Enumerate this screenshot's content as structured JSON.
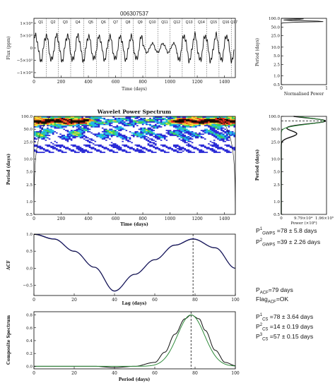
{
  "star_id": "006307537",
  "flux_panel": {
    "ylabel": "Flux (ppm)",
    "xlabel": "Time (days)",
    "xlim": [
      0,
      1480
    ],
    "xticks": [
      0,
      200,
      400,
      600,
      800,
      1000,
      1200,
      1400
    ],
    "yticks": [
      "1×10⁴",
      "5×10³",
      "0",
      "−5×10³",
      "−1×10⁴"
    ],
    "quarters": [
      "Q1",
      "Q2",
      "Q3",
      "Q4",
      "Q5",
      "Q6",
      "Q7",
      "Q8",
      "Q9",
      "Q10",
      "Q11",
      "Q12",
      "Q13",
      "Q14",
      "Q15",
      "Q16",
      "Q17"
    ]
  },
  "norm_power_panel": {
    "ylabel": "Period (days)",
    "xlabel": "Normalised Power",
    "xticks": [
      "0",
      "1"
    ],
    "yticks": [
      "100.0",
      "50.0",
      "25.0",
      "10.0",
      "5.0",
      "2.5",
      "1.0",
      "0.5"
    ]
  },
  "wavelet_panel": {
    "title": "Wavelet Power Spectrum",
    "ylabel": "Period (days)",
    "xlabel": "Time (days)",
    "xticks": [
      0,
      200,
      400,
      600,
      800,
      1000,
      1200,
      1400
    ],
    "yticks": [
      "100.0",
      "50.0",
      "25.0",
      "10.0",
      "5.0",
      "2.5",
      "1.0",
      "0.5"
    ]
  },
  "gwps_panel": {
    "ylabel": "Period (days)",
    "xlabel": "Power (×10⁶)",
    "xticks": [
      "0",
      "9.79×10⁴",
      "1.96×10⁵"
    ],
    "yticks": [
      "100.0",
      "50.0",
      "25.0",
      "10.0",
      "5.0",
      "2.5",
      "1.0",
      "0.5"
    ]
  },
  "acf_panel": {
    "ylabel": "ACF",
    "xlabel": "Lag (days)",
    "xticks": [
      0,
      20,
      40,
      60,
      80,
      100
    ],
    "yticks": [
      "1.0",
      "0.5",
      "0.0",
      "−0.5"
    ]
  },
  "cs_panel": {
    "ylabel": "Composite Spectrum",
    "xlabel": "Period (days)",
    "xticks": [
      0,
      20,
      40,
      60,
      80,
      100
    ],
    "yticks": [
      "0.8",
      "0.6",
      "0.4",
      "0.2",
      "0.0"
    ]
  },
  "results": {
    "gwps1_label": "P",
    "gwps1_sup": "1",
    "gwps1_sub": "GWPS",
    "gwps1_value": " =78 ± 5.8 days",
    "gwps2_label": "P",
    "gwps2_sup": "2",
    "gwps2_sub": "GWPS",
    "gwps2_value": " =39 ± 2.26 days",
    "acf_label": "P",
    "acf_sub": "ACF",
    "acf_value": "=79 days",
    "flag_label": "Flag",
    "flag_sub": "ACF",
    "flag_value": "=OK",
    "cs1_label": "P",
    "cs1_sup": "1",
    "cs1_sub": "CS",
    "cs1_value": " =78 ± 3.64 days",
    "cs2_label": "P",
    "cs2_sup": "2",
    "cs2_sub": "CS",
    "cs2_value": " =14 ± 0.19 days",
    "cs3_label": "P",
    "cs3_sup": "3",
    "cs3_sub": "CS",
    "cs3_value": " =57 ± 0.15 days"
  },
  "chart_data": [
    {
      "type": "line",
      "panel": "flux",
      "xlim": [
        0,
        1480
      ],
      "ylim": [
        -12000,
        12000
      ],
      "period_days": 78,
      "amplitude_ppm_by_segment": [
        {
          "t": [
            0,
            400
          ],
          "amp": 5000
        },
        {
          "t": [
            400,
            800
          ],
          "amp": 4600
        },
        {
          "t": [
            800,
            1050
          ],
          "amp": 1800
        },
        {
          "t": [
            1050,
            1480
          ],
          "amp": 5000
        }
      ],
      "quarter_boundaries_days": [
        0,
        90,
        180,
        270,
        365,
        460,
        550,
        640,
        730,
        820,
        910,
        1000,
        1090,
        1180,
        1270,
        1360,
        1450
      ]
    },
    {
      "type": "line",
      "panel": "normalised_power",
      "x": [
        0,
        1
      ],
      "peak_period_days": 78,
      "secondary_peak_days": 94
    },
    {
      "type": "heatmap",
      "panel": "wavelet",
      "xlim": [
        0,
        1480
      ],
      "period_range_days": [
        0.5,
        100
      ],
      "strong_power_period_days": 78,
      "strong_power_intervals_days": [
        [
          0,
          380
        ],
        [
          1050,
          1480
        ]
      ],
      "weak_power_period_days": 39
    },
    {
      "type": "line",
      "panel": "gwps",
      "series": [
        {
          "name": "GWPS",
          "peak_period_days": 78,
          "peak_power": 196000.0
        },
        {
          "name": "fit",
          "peak_period_days": 78
        }
      ],
      "marked_period_days": 78
    },
    {
      "type": "line",
      "panel": "acf",
      "xlim": [
        0,
        100
      ],
      "ylim": [
        -0.8,
        1.0
      ],
      "x": [
        0,
        10,
        20,
        30,
        40,
        50,
        60,
        70,
        79,
        90,
        100
      ],
      "y": [
        1.0,
        0.86,
        0.5,
        0.03,
        -0.67,
        -0.18,
        0.25,
        0.68,
        0.86,
        0.6,
        0.0
      ],
      "marked_lag_days": 79
    },
    {
      "type": "line",
      "panel": "composite_spectrum",
      "xlim": [
        0,
        100
      ],
      "ylim": [
        -0.04,
        0.85
      ],
      "x": [
        0,
        10,
        20,
        30,
        40,
        50,
        60,
        65,
        70,
        75,
        78,
        82,
        85,
        90,
        95,
        100
      ],
      "y": [
        0.0,
        0.0,
        0.0,
        0.0,
        -0.02,
        0.0,
        0.06,
        0.22,
        0.5,
        0.74,
        0.8,
        0.74,
        0.56,
        0.25,
        0.06,
        0.01
      ],
      "marked_period_days": 78
    }
  ]
}
